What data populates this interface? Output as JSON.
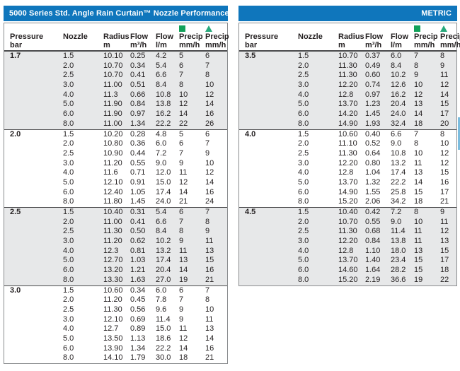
{
  "colors": {
    "header_blue": "#0F76BC",
    "precip_square_icon": "#12A159",
    "precip_triangle_icon": "#27A97B",
    "shaded_row_band": "#E7E8E9",
    "text": "#231F20",
    "edge_sliver_blue": "#7BBCDE"
  },
  "columns": {
    "c1": {
      "l1": "Pressure",
      "l2": "bar"
    },
    "c2": {
      "l1": "Nozzle",
      "l2": ""
    },
    "c3": {
      "l1": "Radius",
      "l2": "m"
    },
    "c4": {
      "l1": "Flow",
      "l2": "m³/h"
    },
    "c5": {
      "l1": "Flow",
      "l2": "l/m"
    },
    "c6": {
      "l1": "Precip",
      "l2": "mm/h",
      "icon": "green-square"
    },
    "c7": {
      "l1": "Precip",
      "l2": "mm/h",
      "icon": "green-triangle"
    }
  },
  "tables": [
    {
      "title": "5000 Series Std. Angle Rain Curtain™ Nozzle Performance",
      "groups": [
        {
          "pressure": "1.7",
          "rows": [
            [
              "1.5",
              "10.10",
              "0.25",
              "4.2",
              "5",
              "6"
            ],
            [
              "2.0",
              "10.70",
              "0.34",
              "5.4",
              "6",
              "7"
            ],
            [
              "2.5",
              "10.70",
              "0.41",
              "6.6",
              "7",
              "8"
            ],
            [
              "3.0",
              "11.00",
              "0.51",
              "8.4",
              "8",
              "10"
            ],
            [
              "4.0",
              "11.3",
              "0.66",
              "10.8",
              "10",
              "12"
            ],
            [
              "5.0",
              "11.90",
              "0.84",
              "13.8",
              "12",
              "14"
            ],
            [
              "6.0",
              "11.90",
              "0.97",
              "16.2",
              "14",
              "16"
            ],
            [
              "8.0",
              "11.00",
              "1.34",
              "22.2",
              "22",
              "26"
            ]
          ]
        },
        {
          "pressure": "2.0",
          "rows": [
            [
              "1.5",
              "10.20",
              "0.28",
              "4.8",
              "5",
              "6"
            ],
            [
              "2.0",
              "10.80",
              "0.36",
              "6.0",
              "6",
              "7"
            ],
            [
              "2.5",
              "10.90",
              "0.44",
              "7.2",
              "7",
              "9"
            ],
            [
              "3.0",
              "11.20",
              "0.55",
              "9.0",
              "9",
              "10"
            ],
            [
              "4.0",
              "11.6",
              "0.71",
              "12.0",
              "11",
              "12"
            ],
            [
              "5.0",
              "12.10",
              "0.91",
              "15.0",
              "12",
              "14"
            ],
            [
              "6.0",
              "12.40",
              "1.05",
              "17.4",
              "14",
              "16"
            ],
            [
              "8.0",
              "11.80",
              "1.45",
              "24.0",
              "21",
              "24"
            ]
          ]
        },
        {
          "pressure": "2.5",
          "rows": [
            [
              "1.5",
              "10.40",
              "0.31",
              "5.4",
              "6",
              "7"
            ],
            [
              "2.0",
              "11.00",
              "0.41",
              "6.6",
              "7",
              "8"
            ],
            [
              "2.5",
              "11.30",
              "0.50",
              "8.4",
              "8",
              "9"
            ],
            [
              "3.0",
              "11.20",
              "0.62",
              "10.2",
              "9",
              "11"
            ],
            [
              "4.0",
              "12.3",
              "0.81",
              "13.2",
              "11",
              "13"
            ],
            [
              "5.0",
              "12.70",
              "1.03",
              "17.4",
              "13",
              "15"
            ],
            [
              "6.0",
              "13.20",
              "1.21",
              "20.4",
              "14",
              "16"
            ],
            [
              "8.0",
              "13.30",
              "1.63",
              "27.0",
              "19",
              "21"
            ]
          ]
        },
        {
          "pressure": "3.0",
          "rows": [
            [
              "1.5",
              "10.60",
              "0.34",
              "6.0",
              "6",
              "7"
            ],
            [
              "2.0",
              "11.20",
              "0.45",
              "7.8",
              "7",
              "8"
            ],
            [
              "2.5",
              "11.30",
              "0.56",
              "9.6",
              "9",
              "10"
            ],
            [
              "3.0",
              "12.10",
              "0.69",
              "11.4",
              "9",
              "11"
            ],
            [
              "4.0",
              "12.7",
              "0.89",
              "15.0",
              "11",
              "13"
            ],
            [
              "5.0",
              "13.50",
              "1.13",
              "18.6",
              "12",
              "14"
            ],
            [
              "6.0",
              "13.90",
              "1.34",
              "22.2",
              "14",
              "16"
            ],
            [
              "8.0",
              "14.10",
              "1.79",
              "30.0",
              "18",
              "21"
            ]
          ]
        }
      ]
    },
    {
      "title": "METRIC",
      "groups": [
        {
          "pressure": "3.5",
          "rows": [
            [
              "1.5",
              "10.70",
              "0.37",
              "6.0",
              "7",
              "8"
            ],
            [
              "2.0",
              "11.30",
              "0.49",
              "8.4",
              "8",
              "9"
            ],
            [
              "2.5",
              "11.30",
              "0.60",
              "10.2",
              "9",
              "11"
            ],
            [
              "3.0",
              "12.20",
              "0.74",
              "12.6",
              "10",
              "12"
            ],
            [
              "4.0",
              "12.8",
              "0.97",
              "16.2",
              "12",
              "14"
            ],
            [
              "5.0",
              "13.70",
              "1.23",
              "20.4",
              "13",
              "15"
            ],
            [
              "6.0",
              "14.20",
              "1.45",
              "24.0",
              "14",
              "17"
            ],
            [
              "8.0",
              "14.90",
              "1.93",
              "32.4",
              "18",
              "20"
            ]
          ]
        },
        {
          "pressure": "4.0",
          "rows": [
            [
              "1.5",
              "10.60",
              "0.40",
              "6.6",
              "7",
              "8"
            ],
            [
              "2.0",
              "11.10",
              "0.52",
              "9.0",
              "8",
              "10"
            ],
            [
              "2.5",
              "11.30",
              "0.64",
              "10.8",
              "10",
              "12"
            ],
            [
              "3.0",
              "12.20",
              "0.80",
              "13.2",
              "11",
              "12"
            ],
            [
              "4.0",
              "12.8",
              "1.04",
              "17.4",
              "13",
              "15"
            ],
            [
              "5.0",
              "13.70",
              "1.32",
              "22.2",
              "14",
              "16"
            ],
            [
              "6.0",
              "14.90",
              "1.55",
              "25.8",
              "15",
              "17"
            ],
            [
              "8.0",
              "15.20",
              "2.06",
              "34.2",
              "18",
              "21"
            ]
          ]
        },
        {
          "pressure": "4.5",
          "rows": [
            [
              "1.5",
              "10.40",
              "0.42",
              "7.2",
              "8",
              "9"
            ],
            [
              "2.0",
              "10.70",
              "0.55",
              "9.0",
              "10",
              "11"
            ],
            [
              "2.5",
              "11.30",
              "0.68",
              "11.4",
              "11",
              "12"
            ],
            [
              "3.0",
              "12.20",
              "0.84",
              "13.8",
              "11",
              "13"
            ],
            [
              "4.0",
              "12.8",
              "1.10",
              "18.0",
              "13",
              "15"
            ],
            [
              "5.0",
              "13.70",
              "1.40",
              "23.4",
              "15",
              "17"
            ],
            [
              "6.0",
              "14.60",
              "1.64",
              "28.2",
              "15",
              "18"
            ],
            [
              "8.0",
              "15.20",
              "2.19",
              "36.6",
              "19",
              "22"
            ]
          ]
        }
      ]
    }
  ]
}
